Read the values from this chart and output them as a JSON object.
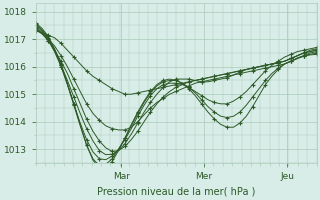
{
  "bg_color": "#d8ede8",
  "grid_color": "#aacaba",
  "line_color": "#2d5a27",
  "marker_color": "#2d5a27",
  "xlabel": "Pression niveau de la mer( hPa )",
  "xlabel_color": "#2d5a27",
  "tick_color": "#2d5a27",
  "ylim": [
    1012.5,
    1018.3
  ],
  "yticks": [
    1013,
    1014,
    1015,
    1016,
    1017,
    1018
  ],
  "x_day_labels": [
    [
      "Mar",
      0.305
    ],
    [
      "Mer",
      0.6
    ],
    [
      "Jeu",
      0.895
    ]
  ],
  "series": [
    [
      1017.3,
      1017.25,
      1017.15,
      1017.05,
      1016.85,
      1016.6,
      1016.35,
      1016.1,
      1015.85,
      1015.65,
      1015.5,
      1015.35,
      1015.2,
      1015.1,
      1015.0,
      1015.0,
      1015.05,
      1015.1,
      1015.15,
      1015.2,
      1015.25,
      1015.3,
      1015.35,
      1015.4,
      1015.45,
      1015.5,
      1015.55,
      1015.6,
      1015.65,
      1015.7,
      1015.75,
      1015.8,
      1015.85,
      1015.9,
      1015.95,
      1016.0,
      1016.05,
      1016.1,
      1016.15,
      1016.2,
      1016.3,
      1016.4,
      1016.5,
      1016.6,
      1016.65
    ],
    [
      1017.35,
      1017.2,
      1017.0,
      1016.75,
      1016.4,
      1016.0,
      1015.55,
      1015.1,
      1014.65,
      1014.3,
      1014.05,
      1013.85,
      1013.75,
      1013.7,
      1013.7,
      1013.8,
      1014.0,
      1014.25,
      1014.5,
      1014.7,
      1014.85,
      1015.0,
      1015.1,
      1015.2,
      1015.3,
      1015.4,
      1015.45,
      1015.5,
      1015.55,
      1015.6,
      1015.65,
      1015.7,
      1015.75,
      1015.8,
      1015.85,
      1015.9,
      1015.95,
      1016.0,
      1016.05,
      1016.1,
      1016.2,
      1016.3,
      1016.4,
      1016.5,
      1016.55
    ],
    [
      1017.4,
      1017.2,
      1016.95,
      1016.6,
      1016.2,
      1015.75,
      1015.2,
      1014.65,
      1014.1,
      1013.65,
      1013.3,
      1013.05,
      1012.92,
      1012.95,
      1013.1,
      1013.35,
      1013.65,
      1014.0,
      1014.35,
      1014.65,
      1014.9,
      1015.1,
      1015.25,
      1015.35,
      1015.45,
      1015.5,
      1015.55,
      1015.6,
      1015.65,
      1015.7,
      1015.75,
      1015.8,
      1015.85,
      1015.9,
      1015.95,
      1016.0,
      1016.05,
      1016.1,
      1016.15,
      1016.2,
      1016.3,
      1016.4,
      1016.5,
      1016.55,
      1016.6
    ],
    [
      1017.45,
      1017.25,
      1016.95,
      1016.55,
      1016.05,
      1015.5,
      1014.9,
      1014.3,
      1013.75,
      1013.3,
      1012.95,
      1012.8,
      1012.82,
      1012.95,
      1013.2,
      1013.55,
      1013.95,
      1014.35,
      1014.7,
      1015.0,
      1015.25,
      1015.45,
      1015.55,
      1015.55,
      1015.55,
      1015.5,
      1015.45,
      1015.45,
      1015.5,
      1015.55,
      1015.6,
      1015.7,
      1015.8,
      1015.9,
      1015.95,
      1016.0,
      1016.05,
      1016.1,
      1016.15,
      1016.2,
      1016.3,
      1016.4,
      1016.5,
      1016.55,
      1016.6
    ],
    [
      1017.5,
      1017.3,
      1017.0,
      1016.55,
      1016.0,
      1015.35,
      1014.65,
      1013.95,
      1013.35,
      1012.9,
      1012.65,
      1012.62,
      1012.75,
      1013.0,
      1013.35,
      1013.75,
      1014.2,
      1014.6,
      1014.95,
      1015.2,
      1015.35,
      1015.4,
      1015.4,
      1015.35,
      1015.25,
      1015.1,
      1014.95,
      1014.8,
      1014.7,
      1014.65,
      1014.65,
      1014.75,
      1014.9,
      1015.1,
      1015.35,
      1015.6,
      1015.85,
      1016.05,
      1016.2,
      1016.35,
      1016.45,
      1016.55,
      1016.6,
      1016.65,
      1016.7
    ],
    [
      1017.55,
      1017.35,
      1017.05,
      1016.6,
      1016.05,
      1015.35,
      1014.6,
      1013.85,
      1013.15,
      1012.65,
      1012.4,
      1012.45,
      1012.65,
      1013.0,
      1013.4,
      1013.85,
      1014.3,
      1014.7,
      1015.05,
      1015.3,
      1015.45,
      1015.5,
      1015.5,
      1015.4,
      1015.25,
      1015.05,
      1014.8,
      1014.55,
      1014.35,
      1014.2,
      1014.15,
      1014.2,
      1014.35,
      1014.6,
      1014.9,
      1015.2,
      1015.5,
      1015.75,
      1015.95,
      1016.1,
      1016.2,
      1016.3,
      1016.38,
      1016.43,
      1016.45
    ],
    [
      1017.6,
      1017.4,
      1017.1,
      1016.65,
      1016.1,
      1015.4,
      1014.65,
      1013.9,
      1013.15,
      1012.6,
      1012.3,
      1012.3,
      1012.55,
      1012.95,
      1013.4,
      1013.9,
      1014.35,
      1014.75,
      1015.1,
      1015.35,
      1015.5,
      1015.55,
      1015.5,
      1015.4,
      1015.2,
      1014.95,
      1014.65,
      1014.35,
      1014.1,
      1013.9,
      1013.8,
      1013.8,
      1013.95,
      1014.2,
      1014.55,
      1014.95,
      1015.35,
      1015.65,
      1015.9,
      1016.1,
      1016.2,
      1016.32,
      1016.4,
      1016.45,
      1016.5
    ]
  ],
  "marker_interval": 2,
  "figsize": [
    3.2,
    2.0
  ],
  "dpi": 100
}
